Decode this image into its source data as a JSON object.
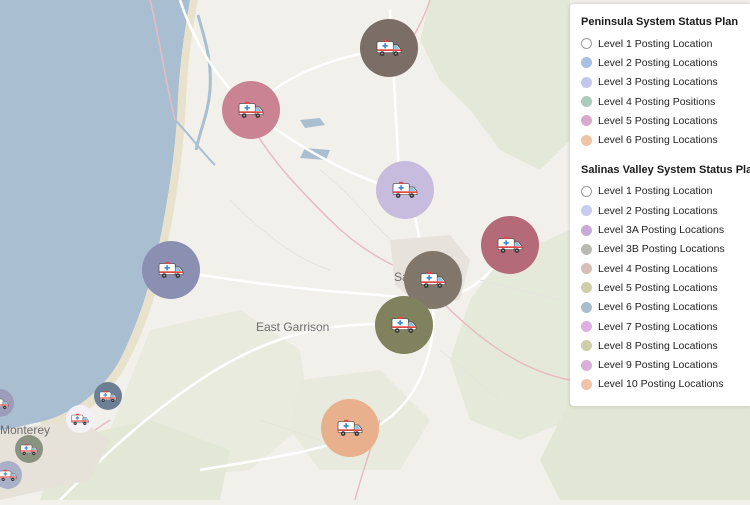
{
  "map": {
    "places": [
      {
        "id": "salinas",
        "label": "Salinas"
      },
      {
        "id": "east-garrison",
        "label": "East Garrison"
      },
      {
        "id": "monterey",
        "label": "Monterey"
      }
    ],
    "markers": [
      {
        "id": "castroville",
        "color": "#7a6e66",
        "icon": "ambulance-icon"
      },
      {
        "id": "marina-north",
        "color": "#c98392",
        "icon": "ambulance-icon"
      },
      {
        "id": "salinas-north",
        "color": "#c7bcde",
        "icon": "ambulance-icon"
      },
      {
        "id": "salinas-east",
        "color": "#b46a79",
        "icon": "ambulance-icon"
      },
      {
        "id": "salinas-center",
        "color": "#80766a",
        "icon": "ambulance-icon"
      },
      {
        "id": "salinas-south",
        "color": "#80825d",
        "icon": "ambulance-icon"
      },
      {
        "id": "marina",
        "color": "#8b8fb2",
        "icon": "ambulance-icon"
      },
      {
        "id": "spreckels-south",
        "color": "#e8b08c",
        "icon": "ambulance-icon"
      },
      {
        "id": "seaside-east",
        "color": "#6c7f95",
        "icon": "ambulance-icon"
      },
      {
        "id": "seaside",
        "color": "#f4f1f6",
        "icon": "ambulance-icon"
      },
      {
        "id": "monterey-east",
        "color": "#8a9281",
        "icon": "ambulance-icon"
      },
      {
        "id": "monterey-west",
        "color": "#9a9cba",
        "icon": "ambulance-icon"
      },
      {
        "id": "pacific-grove",
        "color": "#a9b0c8",
        "icon": "ambulance-icon"
      }
    ]
  },
  "legend": {
    "peninsula": {
      "title": "Peninsula System Status Plan",
      "items": [
        {
          "label": "Level 1 Posting Location",
          "color": "#ffffff"
        },
        {
          "label": "Level 2 Posting Locations",
          "color": "#a9c0e4"
        },
        {
          "label": "Level 3 Posting Locations",
          "color": "#c2c6ec"
        },
        {
          "label": "Level 4 Posting Positions",
          "color": "#a9ccbf"
        },
        {
          "label": "Level 5 Posting Locations",
          "color": "#d8a9cc"
        },
        {
          "label": "Level 6 Posting Locations",
          "color": "#efc3a5"
        }
      ]
    },
    "salinas_valley": {
      "title": "Salinas Valley System Status Plan",
      "items": [
        {
          "label": "Level 1 Posting Location",
          "color": "#ffffff"
        },
        {
          "label": "Level 2 Posting Locations",
          "color": "#c9ccee"
        },
        {
          "label": "Level 3A Posting Locations",
          "color": "#c7abd6"
        },
        {
          "label": "Level 3B Posting Locations",
          "color": "#b9b9b4"
        },
        {
          "label": "Level 4 Posting Locations",
          "color": "#d5bfb7"
        },
        {
          "label": "Level 5 Posting Locations",
          "color": "#cccfa8"
        },
        {
          "label": "Level 6 Posting Locations",
          "color": "#a9bccc"
        },
        {
          "label": "Level 7 Posting Locations",
          "color": "#dcafe0"
        },
        {
          "label": "Level 8 Posting Locations",
          "color": "#cccfa8"
        },
        {
          "label": "Level 9 Posting Locations",
          "color": "#d8afd6"
        },
        {
          "label": "Level 10 Posting Locations",
          "color": "#efc3a5"
        }
      ]
    }
  }
}
